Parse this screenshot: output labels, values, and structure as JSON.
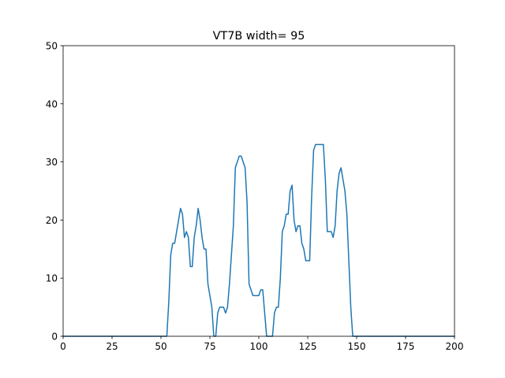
{
  "chart_data": {
    "type": "line",
    "title": "VT7B width= 95",
    "xlabel": "",
    "ylabel": "",
    "xlim": [
      0,
      200
    ],
    "ylim": [
      0,
      50
    ],
    "xticks": [
      0,
      25,
      50,
      75,
      100,
      125,
      150,
      175,
      200
    ],
    "yticks": [
      0,
      10,
      20,
      30,
      40,
      50
    ],
    "grid": false,
    "legend": "none",
    "series": [
      {
        "color": "#1f77b4",
        "x": [
          0,
          53,
          54,
          55,
          56,
          57,
          58,
          59,
          60,
          61,
          62,
          63,
          64,
          65,
          66,
          67,
          68,
          69,
          70,
          71,
          72,
          73,
          74,
          75,
          76,
          77,
          78,
          79,
          80,
          81,
          82,
          83,
          84,
          85,
          86,
          87,
          88,
          89,
          90,
          91,
          92,
          93,
          94,
          95,
          96,
          97,
          98,
          99,
          100,
          101,
          102,
          103,
          104,
          105,
          106,
          107,
          108,
          109,
          110,
          111,
          112,
          113,
          114,
          115,
          116,
          117,
          118,
          119,
          120,
          121,
          122,
          123,
          124,
          125,
          126,
          127,
          128,
          129,
          130,
          131,
          132,
          133,
          134,
          135,
          136,
          137,
          138,
          139,
          140,
          141,
          142,
          143,
          144,
          145,
          146,
          147,
          148,
          200
        ],
        "y": [
          0,
          0,
          6,
          14,
          16,
          16,
          18,
          20,
          22,
          21,
          17,
          18,
          17,
          12,
          12,
          17,
          19,
          22,
          20,
          17,
          15,
          15,
          9,
          7,
          5,
          0,
          0,
          4,
          5,
          5,
          5,
          4,
          5,
          9,
          14,
          19,
          29,
          30,
          31,
          31,
          30,
          29,
          23,
          9,
          8,
          7,
          7,
          7,
          7,
          8,
          8,
          4,
          0,
          0,
          0,
          0,
          4,
          5,
          5,
          10,
          18,
          19,
          21,
          21,
          25,
          26,
          20,
          18,
          19,
          19,
          16,
          15,
          13,
          13,
          13,
          24,
          32,
          33,
          33,
          33,
          33,
          33,
          27,
          18,
          18,
          18,
          17,
          19,
          25,
          28,
          29,
          27,
          25,
          21,
          13,
          5,
          0,
          0
        ]
      }
    ]
  }
}
